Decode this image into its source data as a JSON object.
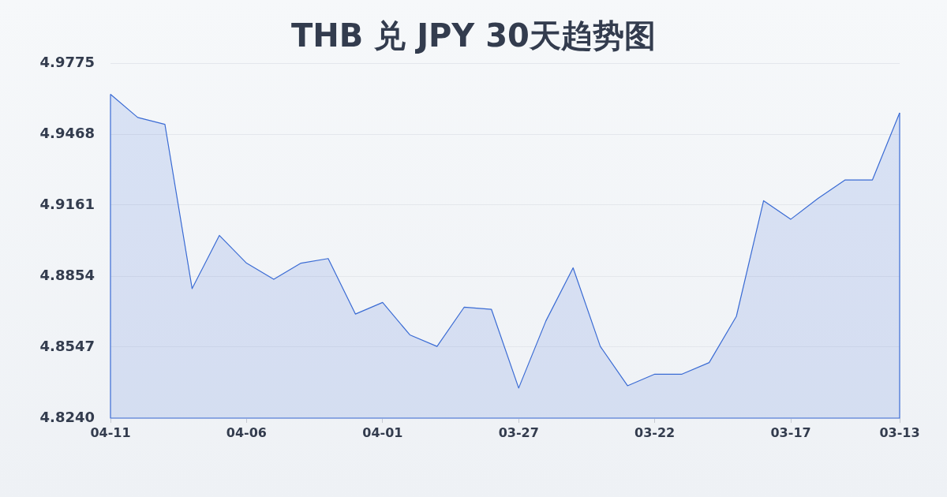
{
  "chart_data": {
    "type": "area",
    "title": "THB 兑 JPY 30天趋势图",
    "categories": [
      "04-11",
      null,
      null,
      null,
      null,
      "04-06",
      null,
      null,
      null,
      null,
      "04-01",
      null,
      null,
      null,
      null,
      "03-27",
      null,
      null,
      null,
      null,
      "03-22",
      null,
      null,
      null,
      null,
      "03-17",
      null,
      null,
      null,
      "03-13"
    ],
    "values": [
      4.964,
      4.954,
      4.951,
      4.88,
      4.903,
      4.891,
      4.884,
      4.891,
      4.893,
      4.869,
      4.874,
      4.86,
      4.855,
      4.872,
      4.871,
      4.837,
      4.866,
      4.889,
      4.855,
      4.838,
      4.843,
      4.843,
      4.848,
      4.868,
      4.918,
      4.91,
      4.919,
      4.927,
      4.927,
      4.956
    ],
    "color": "#3a6bd4",
    "ylim": [
      4.824,
      4.9775
    ],
    "yticks": [
      {
        "value": 4.824,
        "label": "4.8240"
      },
      4.8547,
      4.8854,
      4.9161,
      4.9468,
      4.9775
    ],
    "grid": "y"
  }
}
